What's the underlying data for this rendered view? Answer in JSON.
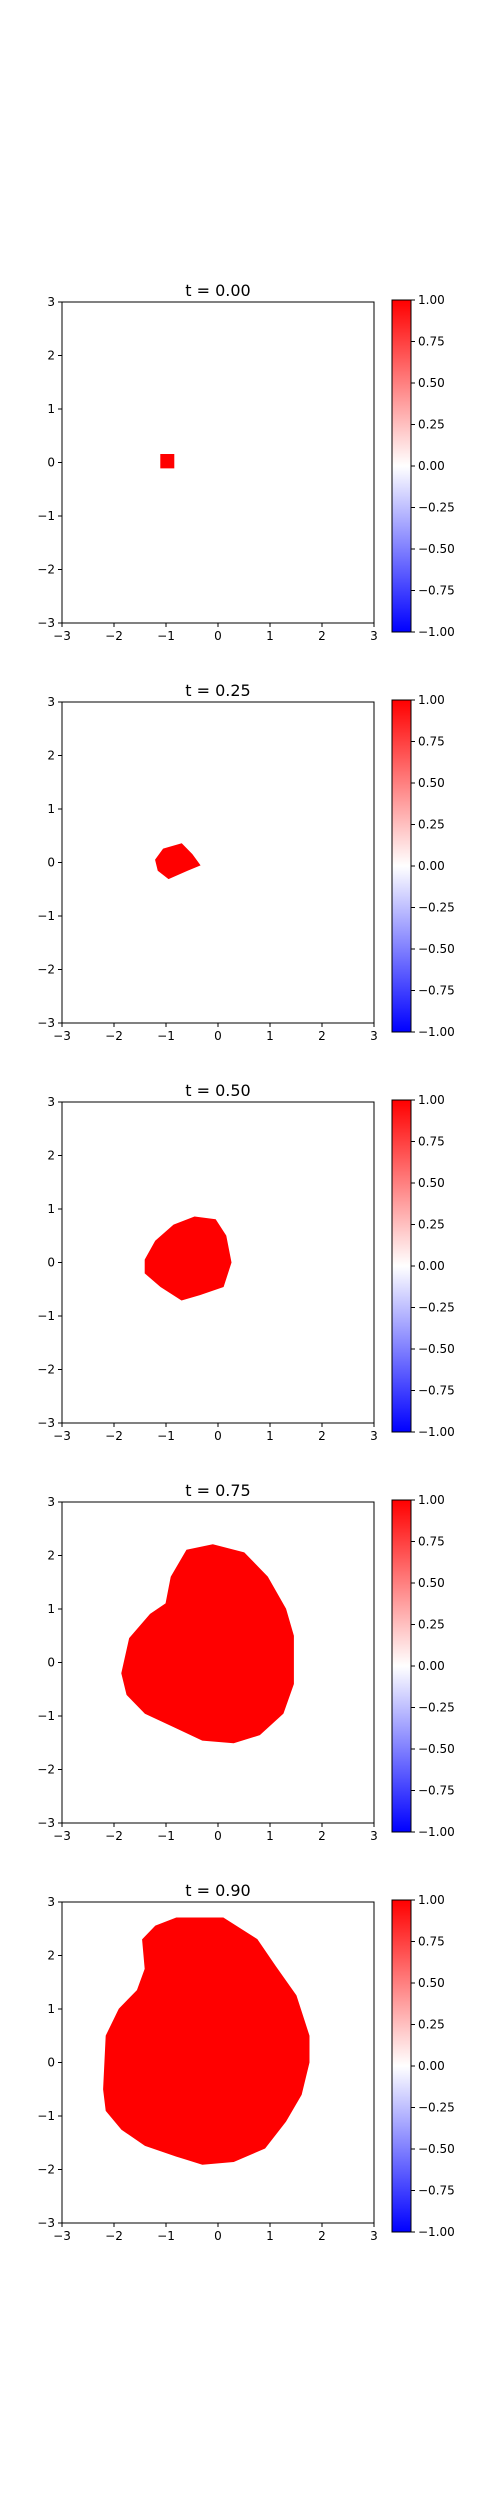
{
  "chart_data": [
    {
      "type": "heatmap",
      "title": "t = 0.00",
      "xlim": [
        -3,
        3
      ],
      "ylim": [
        -3,
        3
      ],
      "xticks": [
        "−3",
        "−2",
        "−1",
        "0",
        "1",
        "2",
        "3"
      ],
      "yticks": [
        "−3",
        "−2",
        "−1",
        "0",
        "1",
        "2",
        "3"
      ],
      "grid": false,
      "colormap": "bwr",
      "colorbar": {
        "range": [
          -1,
          1
        ],
        "ticks": [
          "−1.00",
          "−0.75",
          "−0.50",
          "−0.25",
          "0.00",
          "0.25",
          "0.50",
          "0.75",
          "1.00"
        ]
      },
      "value_inside": 1,
      "value_outside": 0,
      "region": [
        [
          -1.1,
          -0.1
        ],
        [
          -0.85,
          -0.1
        ],
        [
          -0.85,
          0.15
        ],
        [
          -1.1,
          0.15
        ]
      ]
    },
    {
      "type": "heatmap",
      "title": "t = 0.25",
      "xlim": [
        -3,
        3
      ],
      "ylim": [
        -3,
        3
      ],
      "xticks": [
        "−3",
        "−2",
        "−1",
        "0",
        "1",
        "2",
        "3"
      ],
      "yticks": [
        "−3",
        "−2",
        "−1",
        "0",
        "1",
        "2",
        "3"
      ],
      "grid": false,
      "colormap": "bwr",
      "colorbar": {
        "range": [
          -1,
          1
        ],
        "ticks": [
          "−1.00",
          "−0.75",
          "−0.50",
          "−0.25",
          "0.00",
          "0.25",
          "0.50",
          "0.75",
          "1.00"
        ]
      },
      "value_inside": 1,
      "value_outside": 0,
      "region": [
        [
          -1.2,
          0.05
        ],
        [
          -1.05,
          0.25
        ],
        [
          -0.7,
          0.35
        ],
        [
          -0.5,
          0.15
        ],
        [
          -0.35,
          -0.05
        ],
        [
          -0.6,
          -0.15
        ],
        [
          -0.95,
          -0.3
        ],
        [
          -1.15,
          -0.15
        ]
      ]
    },
    {
      "type": "heatmap",
      "title": "t = 0.50",
      "xlim": [
        -3,
        3
      ],
      "ylim": [
        -3,
        3
      ],
      "xticks": [
        "−3",
        "−2",
        "−1",
        "0",
        "1",
        "2",
        "3"
      ],
      "yticks": [
        "−3",
        "−2",
        "−1",
        "0",
        "1",
        "2",
        "3"
      ],
      "grid": false,
      "colormap": "bwr",
      "colorbar": {
        "range": [
          -1,
          1
        ],
        "ticks": [
          "−1.00",
          "−0.75",
          "−0.50",
          "−0.25",
          "0.00",
          "0.25",
          "0.50",
          "0.75",
          "1.00"
        ]
      },
      "value_inside": 1,
      "value_outside": 0,
      "region": [
        [
          -1.4,
          0.05
        ],
        [
          -1.2,
          0.4
        ],
        [
          -0.85,
          0.7
        ],
        [
          -0.45,
          0.85
        ],
        [
          -0.05,
          0.8
        ],
        [
          0.15,
          0.5
        ],
        [
          0.25,
          0.0
        ],
        [
          0.1,
          -0.45
        ],
        [
          -0.35,
          -0.6
        ],
        [
          -0.7,
          -0.7
        ],
        [
          -1.1,
          -0.45
        ],
        [
          -1.4,
          -0.2
        ]
      ]
    },
    {
      "type": "heatmap",
      "title": "t = 0.75",
      "xlim": [
        -3,
        3
      ],
      "ylim": [
        -3,
        3
      ],
      "xticks": [
        "−3",
        "−2",
        "−1",
        "0",
        "1",
        "2",
        "3"
      ],
      "yticks": [
        "−3",
        "−2",
        "−1",
        "0",
        "1",
        "2",
        "3"
      ],
      "grid": false,
      "colormap": "bwr",
      "colorbar": {
        "range": [
          -1,
          1
        ],
        "ticks": [
          "−1.00",
          "−0.75",
          "−0.50",
          "−0.25",
          "0.00",
          "0.25",
          "0.50",
          "0.75",
          "1.00"
        ]
      },
      "value_inside": 1,
      "value_outside": 0,
      "region": [
        [
          -1.85,
          -0.2
        ],
        [
          -1.7,
          0.45
        ],
        [
          -1.3,
          0.9
        ],
        [
          -1.0,
          1.1
        ],
        [
          -0.9,
          1.6
        ],
        [
          -0.6,
          2.1
        ],
        [
          -0.1,
          2.2
        ],
        [
          0.5,
          2.05
        ],
        [
          0.95,
          1.6
        ],
        [
          1.3,
          1.0
        ],
        [
          1.45,
          0.5
        ],
        [
          1.45,
          -0.4
        ],
        [
          1.25,
          -0.95
        ],
        [
          0.8,
          -1.35
        ],
        [
          0.3,
          -1.5
        ],
        [
          -0.3,
          -1.45
        ],
        [
          -0.85,
          -1.2
        ],
        [
          -1.4,
          -0.95
        ],
        [
          -1.75,
          -0.6
        ]
      ]
    },
    {
      "type": "heatmap",
      "title": "t = 0.90",
      "xlim": [
        -3,
        3
      ],
      "ylim": [
        -3,
        3
      ],
      "xticks": [
        "−3",
        "−2",
        "−1",
        "0",
        "1",
        "2",
        "3"
      ],
      "yticks": [
        "−3",
        "−2",
        "−1",
        "0",
        "1",
        "2",
        "3"
      ],
      "grid": false,
      "colormap": "bwr",
      "colorbar": {
        "range": [
          -1,
          1
        ],
        "ticks": [
          "−1.00",
          "−0.75",
          "−0.50",
          "−0.25",
          "0.00",
          "0.25",
          "0.50",
          "0.75",
          "1.00"
        ]
      },
      "value_inside": 1,
      "value_outside": 0,
      "region": [
        [
          -2.2,
          -0.5
        ],
        [
          -2.15,
          0.5
        ],
        [
          -1.9,
          1.0
        ],
        [
          -1.55,
          1.35
        ],
        [
          -1.4,
          1.75
        ],
        [
          -1.45,
          2.3
        ],
        [
          -1.2,
          2.55
        ],
        [
          -0.8,
          2.7
        ],
        [
          0.1,
          2.7
        ],
        [
          0.75,
          2.3
        ],
        [
          1.1,
          1.8
        ],
        [
          1.5,
          1.25
        ],
        [
          1.75,
          0.5
        ],
        [
          1.75,
          0.0
        ],
        [
          1.6,
          -0.6
        ],
        [
          1.3,
          -1.1
        ],
        [
          0.9,
          -1.6
        ],
        [
          0.3,
          -1.85
        ],
        [
          -0.3,
          -1.9
        ],
        [
          -0.8,
          -1.75
        ],
        [
          -1.4,
          -1.55
        ],
        [
          -1.85,
          -1.25
        ],
        [
          -2.15,
          -0.9
        ]
      ]
    }
  ]
}
